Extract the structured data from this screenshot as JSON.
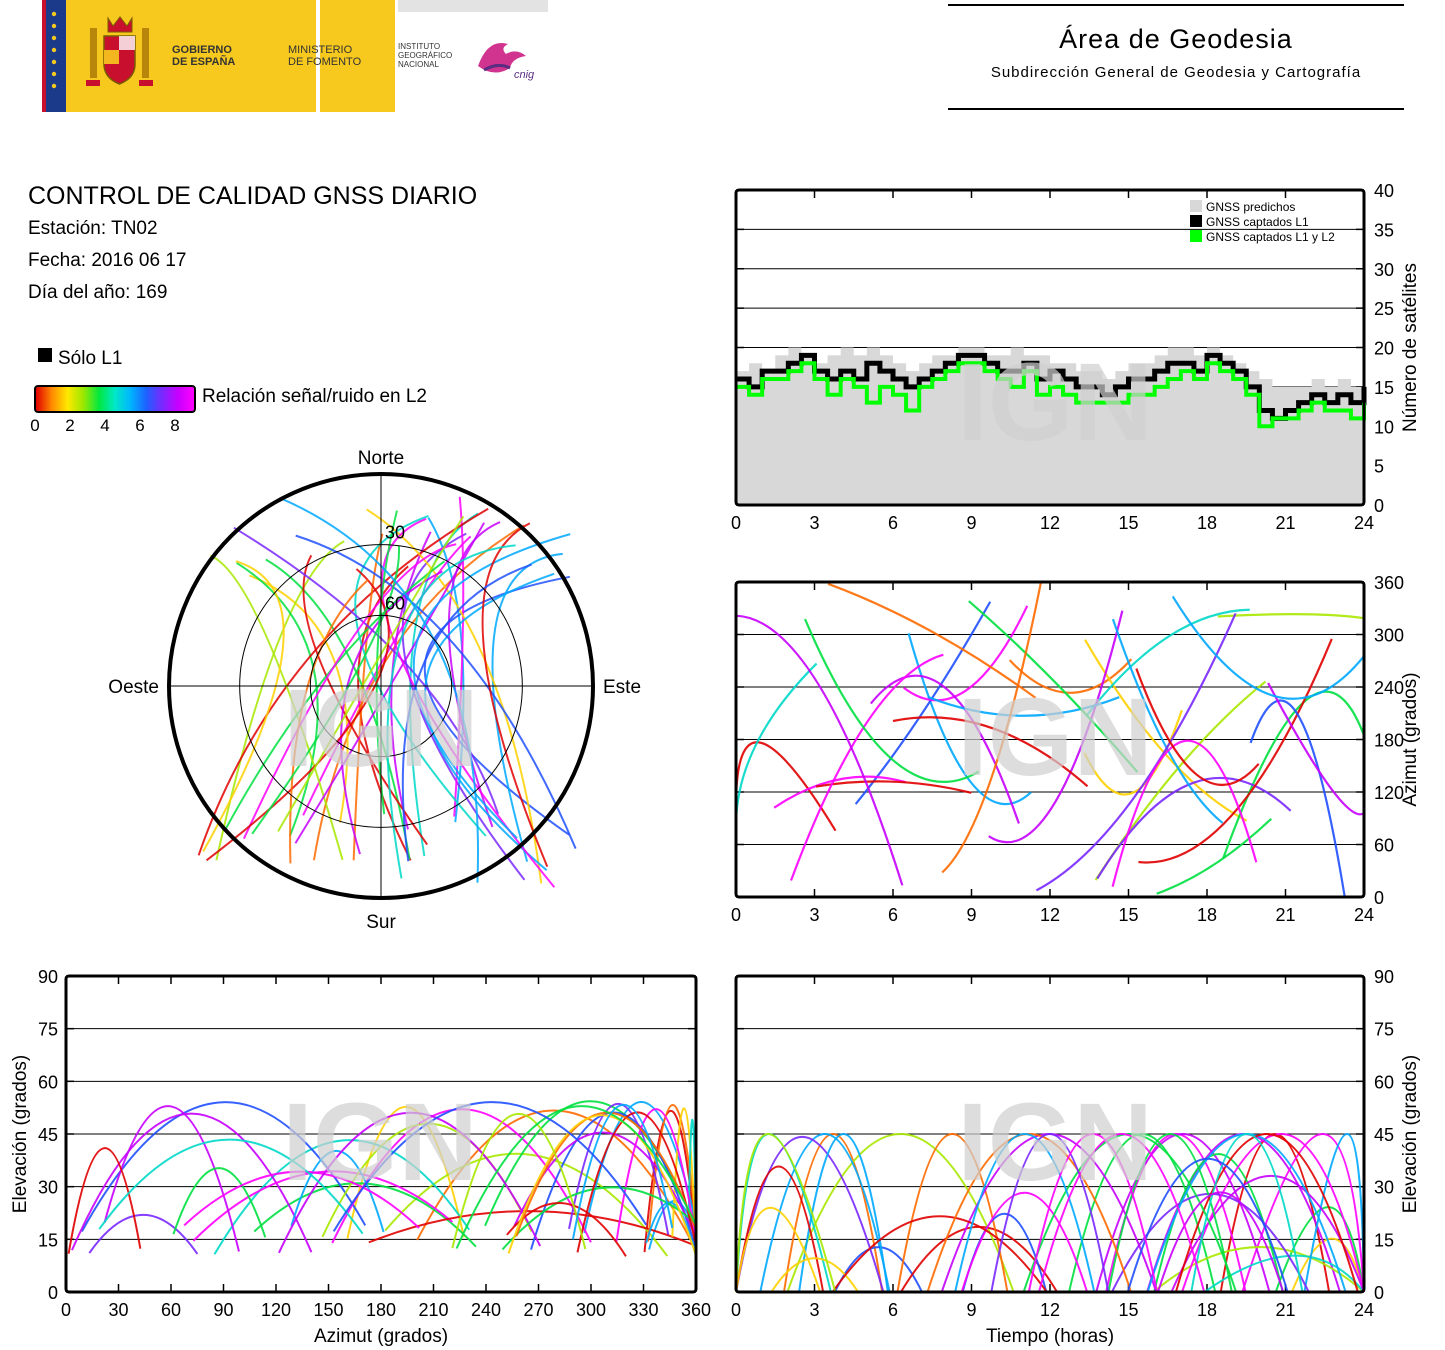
{
  "header": {
    "gov_line1": "GOBIERNO",
    "gov_line2": "DE ESPAÑA",
    "min_line1": "MINISTERIO",
    "min_line2": "DE FOMENTO",
    "ign_line1": "INSTITUTO",
    "ign_line2": "GEOGRÁFICO",
    "ign_line3": "NACIONAL",
    "cnig": "cnig",
    "area_title": "Área de Geodesia",
    "area_subtitle": "Subdirección General de Geodesia y Cartografía"
  },
  "info": {
    "title": "CONTROL DE CALIDAD GNSS DIARIO",
    "station": "Estación: TN02",
    "date": "Fecha: 2016 06 17",
    "doy": "Día del año: 169"
  },
  "legend": {
    "l1_only": "Sólo L1",
    "snr_label": "Relación señal/ruido en L2",
    "snr_ticks": [
      "0",
      "2",
      "4",
      "6",
      "8"
    ]
  },
  "watermark": "IGN",
  "chart_data": [
    {
      "type": "area",
      "ylabel": "Número de satélites",
      "xlabel": "",
      "x_ticks": [
        "0",
        "3",
        "6",
        "9",
        "12",
        "15",
        "18",
        "21",
        "24"
      ],
      "y_ticks": [
        "0",
        "5",
        "10",
        "15",
        "20",
        "25",
        "30",
        "35",
        "40"
      ],
      "xlim": [
        0,
        24
      ],
      "ylim": [
        0,
        40
      ],
      "grid": true,
      "legend_position": "top-right",
      "series": [
        {
          "name": "GNSS predichos",
          "color": "#d8d8d8",
          "x": [
            0,
            0.5,
            1,
            1.5,
            2,
            2.5,
            3,
            3.5,
            4,
            4.5,
            5,
            5.5,
            6,
            6.5,
            7,
            7.5,
            8,
            8.5,
            9,
            9.5,
            10,
            10.5,
            11,
            11.5,
            12,
            12.5,
            13,
            13.5,
            14,
            14.5,
            15,
            15.5,
            16,
            16.5,
            17,
            17.5,
            18,
            18.5,
            19,
            19.5,
            20,
            20.5,
            21,
            21.5,
            22,
            22.5,
            23,
            23.5,
            24
          ],
          "values": [
            17,
            18,
            17,
            19,
            20,
            19,
            18,
            19,
            20,
            19,
            20,
            19,
            18,
            17,
            18,
            19,
            19,
            20,
            20,
            19,
            19,
            20,
            19,
            19,
            18,
            18,
            17,
            17,
            16,
            17,
            18,
            18,
            19,
            20,
            20,
            19,
            20,
            19,
            18,
            17,
            16,
            15,
            15,
            15,
            16,
            15,
            16,
            15,
            16
          ]
        },
        {
          "name": "GNSS captados L1",
          "color": "#000000",
          "x": [
            0,
            0.5,
            1,
            1.5,
            2,
            2.5,
            3,
            3.5,
            4,
            4.5,
            5,
            5.5,
            6,
            6.5,
            7,
            7.5,
            8,
            8.5,
            9,
            9.5,
            10,
            10.5,
            11,
            11.5,
            12,
            12.5,
            13,
            13.5,
            14,
            14.5,
            15,
            15.5,
            16,
            16.5,
            17,
            17.5,
            18,
            18.5,
            19,
            19.5,
            20,
            20.5,
            21,
            21.5,
            22,
            22.5,
            23,
            23.5,
            24
          ],
          "values": [
            16,
            15,
            17,
            17,
            18,
            19,
            17,
            16,
            17,
            16,
            18,
            17,
            16,
            15,
            16,
            17,
            18,
            19,
            19,
            18,
            17,
            17,
            18,
            16,
            17,
            16,
            15,
            15,
            14,
            15,
            16,
            16,
            17,
            18,
            18,
            17,
            19,
            18,
            17,
            15,
            12,
            11,
            12,
            13,
            14,
            13,
            14,
            13,
            15
          ]
        },
        {
          "name": "GNSS captados L1 y L2",
          "color": "#00ff00",
          "x": [
            0,
            0.5,
            1,
            1.5,
            2,
            2.5,
            3,
            3.5,
            4,
            4.5,
            5,
            5.5,
            6,
            6.5,
            7,
            7.5,
            8,
            8.5,
            9,
            9.5,
            10,
            10.5,
            11,
            11.5,
            12,
            12.5,
            13,
            13.5,
            14,
            14.5,
            15,
            15.5,
            16,
            16.5,
            17,
            17.5,
            18,
            18.5,
            19,
            19.5,
            20,
            20.5,
            21,
            21.5,
            22,
            22.5,
            23,
            23.5,
            24
          ],
          "values": [
            15,
            14,
            16,
            16,
            17,
            18,
            16,
            14,
            16,
            15,
            13,
            15,
            14,
            12,
            15,
            16,
            17,
            18,
            18,
            17,
            16,
            15,
            17,
            14,
            15,
            14,
            13,
            13,
            13,
            13,
            14,
            14,
            15,
            16,
            17,
            16,
            18,
            17,
            16,
            14,
            10,
            11,
            11,
            12,
            13,
            12,
            12,
            11,
            13
          ]
        }
      ]
    },
    {
      "type": "scatter",
      "ylabel": "Azimut (grados)",
      "xlabel": "",
      "x_ticks": [
        "0",
        "3",
        "6",
        "9",
        "12",
        "15",
        "18",
        "21",
        "24"
      ],
      "y_ticks": [
        "0",
        "60",
        "120",
        "180",
        "240",
        "300",
        "360"
      ],
      "xlim": [
        0,
        24
      ],
      "ylim": [
        0,
        360
      ],
      "grid": true
    },
    {
      "type": "scatter",
      "ylabel": "Elevación (grados)",
      "xlabel": "Azimut (grados)",
      "x_ticks": [
        "0",
        "30",
        "60",
        "90",
        "120",
        "150",
        "180",
        "210",
        "240",
        "270",
        "300",
        "330",
        "360"
      ],
      "y_ticks": [
        "0",
        "15",
        "30",
        "45",
        "60",
        "75",
        "90"
      ],
      "xlim": [
        0,
        360
      ],
      "ylim": [
        0,
        90
      ],
      "grid": true
    },
    {
      "type": "scatter",
      "ylabel": "Elevación (grados)",
      "xlabel": "Tiempo (horas)",
      "x_ticks": [
        "0",
        "3",
        "6",
        "9",
        "12",
        "15",
        "18",
        "21",
        "24"
      ],
      "y_ticks": [
        "0",
        "15",
        "30",
        "45",
        "60",
        "75",
        "90"
      ],
      "xlim": [
        0,
        24
      ],
      "ylim": [
        0,
        90
      ],
      "grid": true
    },
    {
      "type": "scatter",
      "title": "",
      "polar": true,
      "direction_labels": {
        "north": "Norte",
        "south": "Sur",
        "east": "Este",
        "west": "Oeste"
      },
      "ring_labels": [
        "30",
        "60"
      ]
    }
  ]
}
